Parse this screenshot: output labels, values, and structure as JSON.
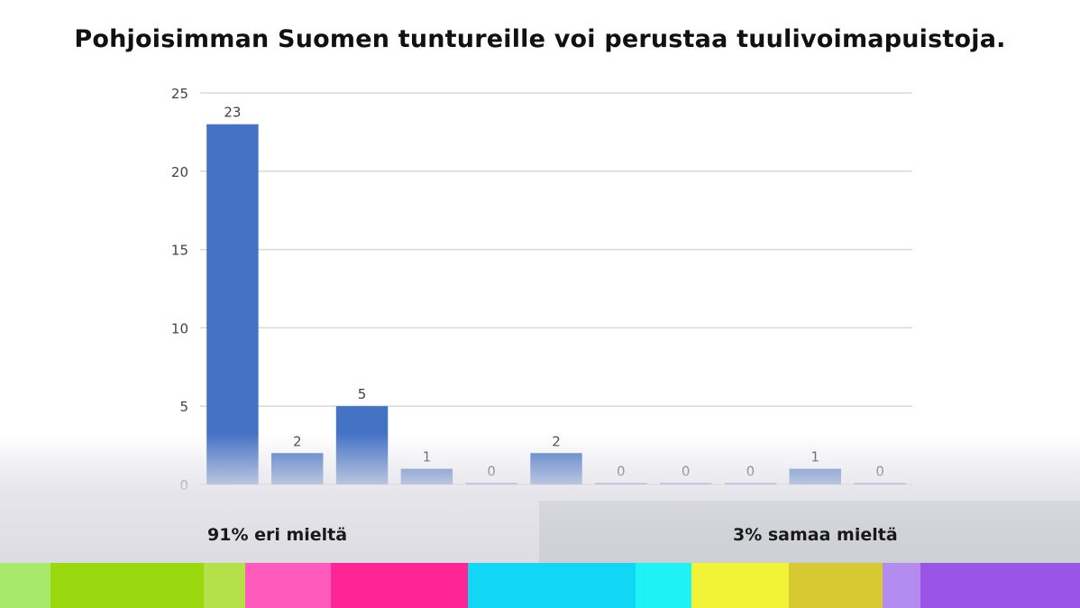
{
  "chart_data": {
    "type": "bar",
    "title": "Pohjoisimman Suomen tuntureille voi perustaa tuulivoimapuistoja.",
    "categories": [
      "",
      "",
      "",
      "",
      "",
      "",
      "",
      "",
      "",
      "",
      ""
    ],
    "values": [
      23,
      2,
      5,
      1,
      0,
      2,
      0,
      0,
      0,
      1,
      0
    ],
    "ylim": [
      0,
      25
    ],
    "yticks": [
      0,
      5,
      10,
      15,
      20,
      25
    ],
    "xlabel": "",
    "ylabel": "",
    "grid": true,
    "bar_color": "#4472c4"
  },
  "summary": {
    "disagree": "91% eri mieltä",
    "agree": "3% samaa mieltä"
  },
  "palette": [
    "#a8e86a",
    "#9ad80f",
    "#b5e04a",
    "#ff5bbd",
    "#ff2594",
    "#12d6f5",
    "#1ff2f5",
    "#f2f236",
    "#d7c931",
    "#b48cf0",
    "#9b55e6"
  ]
}
